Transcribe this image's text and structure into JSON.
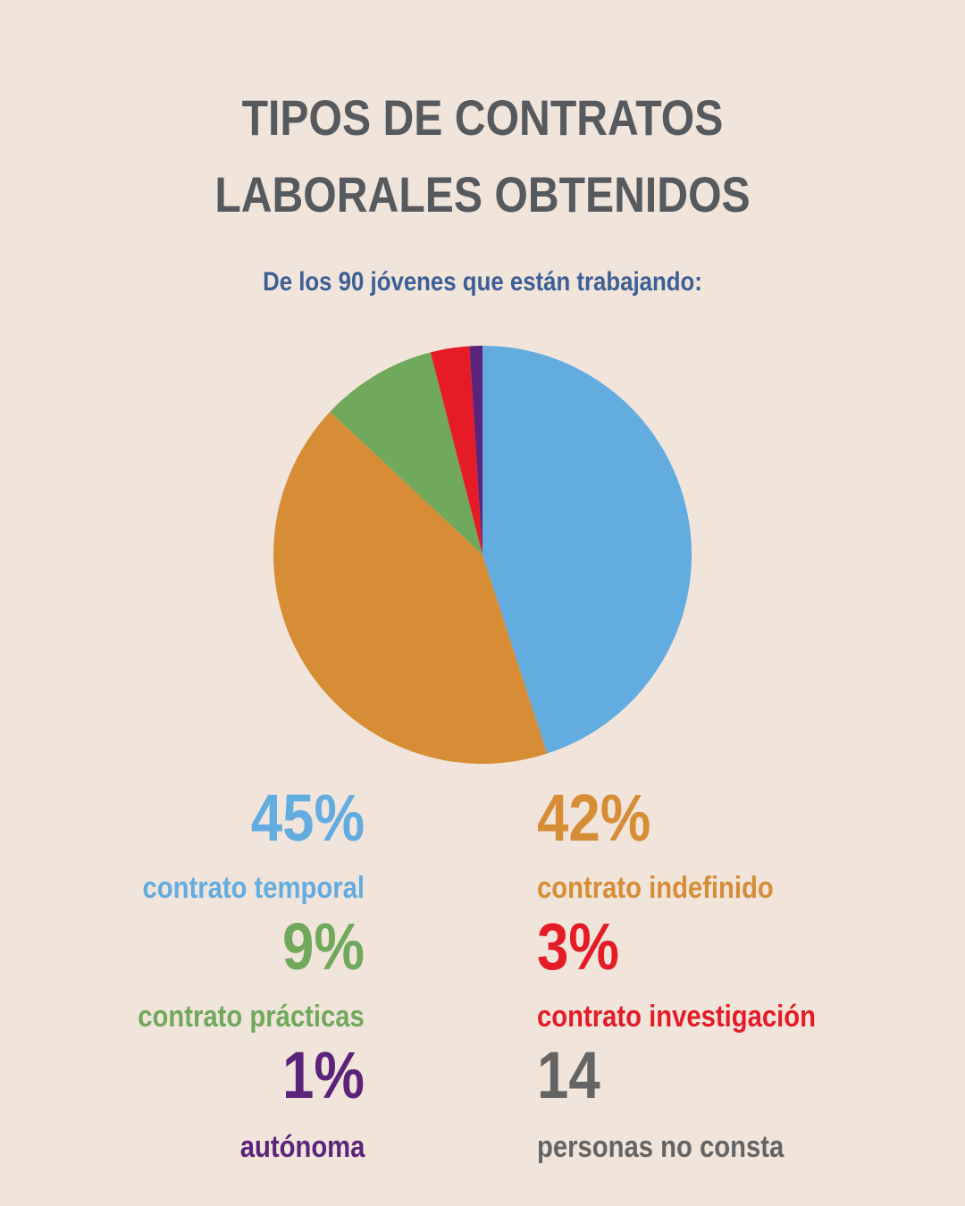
{
  "header": {
    "title_line1": "TIPOS DE CONTRATOS",
    "title_line2": "LABORALES OBTENIDOS",
    "subtitle": "De los 90 jóvenes que están trabajando:"
  },
  "stats": {
    "temporal": {
      "value": "45%",
      "label": "contrato temporal",
      "color": "#62ace0"
    },
    "indefinido": {
      "value": "42%",
      "label": "contrato indefinido",
      "color": "#d68d36"
    },
    "practicas": {
      "value": "9%",
      "label": "contrato prácticas",
      "color": "#70a85c"
    },
    "investigacion": {
      "value": "3%",
      "label": "contrato investigación",
      "color": "#e51c28"
    },
    "autonoma": {
      "value": "1%",
      "label": "autónoma",
      "color": "#5c237a"
    },
    "no_consta": {
      "value": "14",
      "label": "personas no consta",
      "color": "#646464"
    }
  },
  "chart_data": {
    "type": "pie",
    "categories": [
      "contrato temporal",
      "contrato indefinido",
      "contrato prácticas",
      "contrato investigación",
      "autónoma"
    ],
    "values": [
      45,
      42,
      9,
      3,
      1
    ],
    "colors": [
      "#62ace0",
      "#d68d36",
      "#70a85c",
      "#e51c28",
      "#5c237a"
    ],
    "start_angle": "top (12 o'clock)",
    "direction": "clockwise"
  }
}
